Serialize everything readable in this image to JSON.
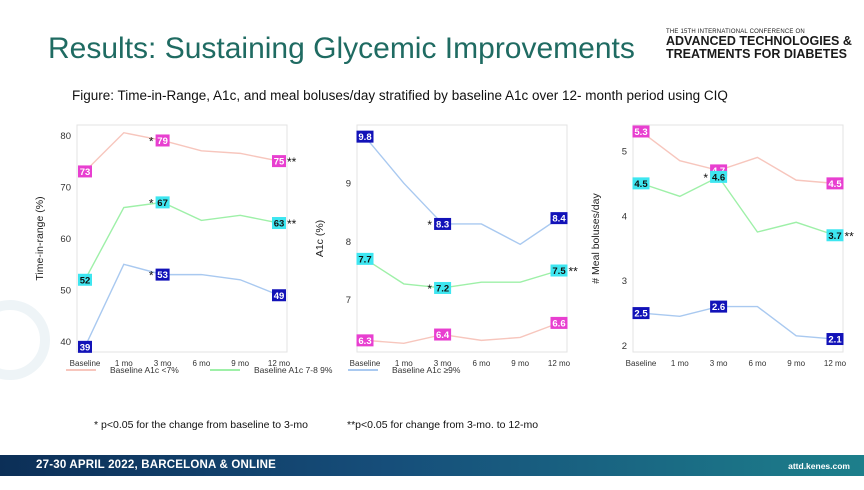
{
  "slide": {
    "title": "Results: Sustaining Glycemic Improvements",
    "conference_top": "THE 15TH INTERNATIONAL CONFERENCE ON",
    "conference_line1": "ADVANCED TECHNOLOGIES &",
    "conference_line2": "TREATMENTS FOR DIABETES",
    "subtitle": "Figure: Time-in-Range, A1c, and meal boluses/day stratified by baseline A1c over 12- month period using CIQ",
    "footnote1": "* p<0.05 for the change from baseline to 3-mo",
    "footnote2": "**p<0.05 for change from 3-mo. to 12-mo",
    "footer_left": "27-30 APRIL 2022, BARCELONA & ONLINE",
    "footer_right": "attd.kenes.com"
  },
  "legend": [
    {
      "label": "Baseline A1c <7%",
      "color": "#f7c6bd"
    },
    {
      "label": "Baseline A1c 7-8 9%",
      "color": "#9ef0a8"
    },
    {
      "label": "Baseline A1c ≥9%",
      "color": "#a9c9f0"
    }
  ],
  "chart_data": [
    {
      "type": "line",
      "ylabel": "Time-in-range (%)",
      "ylim": [
        38,
        82
      ],
      "yticks": [
        40,
        50,
        60,
        70,
        80
      ],
      "categories": [
        "Baseline",
        "1 mo",
        "3 mo",
        "6 mo",
        "9 mo",
        "12 mo"
      ],
      "series": [
        {
          "color": "#f7c6bd",
          "values": [
            73,
            80.5,
            79,
            77,
            76.5,
            75
          ]
        },
        {
          "color": "#9ef0a8",
          "values": [
            52,
            66,
            67,
            63.5,
            64.5,
            63
          ]
        },
        {
          "color": "#a9c9f0",
          "values": [
            39,
            55,
            53,
            53,
            52,
            49
          ]
        }
      ],
      "labels": [
        {
          "index": 0,
          "value": 73,
          "text": "73",
          "bg": "#e83fd0",
          "fg": "#ffffff"
        },
        {
          "index": 2,
          "value": 79,
          "text": "79",
          "bg": "#e83fd0",
          "fg": "#ffffff",
          "mark": "*"
        },
        {
          "index": 5,
          "value": 75,
          "text": "75",
          "bg": "#e83fd0",
          "fg": "#ffffff",
          "mark": "**"
        },
        {
          "index": 0,
          "value": 52,
          "text": "52",
          "bg": "#3ee6f0",
          "fg": "#111111"
        },
        {
          "index": 2,
          "value": 67,
          "text": "67",
          "bg": "#3ee6f0",
          "fg": "#111111",
          "mark": "*"
        },
        {
          "index": 5,
          "value": 63,
          "text": "63",
          "bg": "#3ee6f0",
          "fg": "#111111",
          "mark": "**"
        },
        {
          "index": 0,
          "value": 39,
          "text": "39",
          "bg": "#1212b8",
          "fg": "#ffffff"
        },
        {
          "index": 2,
          "value": 53,
          "text": "53",
          "bg": "#1212b8",
          "fg": "#ffffff",
          "mark": "*"
        },
        {
          "index": 5,
          "value": 49,
          "text": "49",
          "bg": "#1212b8",
          "fg": "#ffffff"
        }
      ]
    },
    {
      "type": "line",
      "ylabel": "A1c (%)",
      "ylim": [
        6.1,
        10.0
      ],
      "yticks": [
        7,
        8,
        9
      ],
      "categories": [
        "Baseline",
        "1 mo",
        "3 mo",
        "6 mo",
        "9 mo",
        "12 mo"
      ],
      "series": [
        {
          "color": "#f7c6bd",
          "values": [
            6.3,
            6.25,
            6.4,
            6.3,
            6.35,
            6.6
          ]
        },
        {
          "color": "#9ef0a8",
          "values": [
            7.7,
            7.27,
            7.2,
            7.3,
            7.3,
            7.5
          ]
        },
        {
          "color": "#a9c9f0",
          "values": [
            9.8,
            9.0,
            8.3,
            8.3,
            7.95,
            8.4
          ]
        }
      ],
      "labels": [
        {
          "index": 0,
          "value": 9.8,
          "text": "9.8",
          "bg": "#1212b8",
          "fg": "#ffffff"
        },
        {
          "index": 2,
          "value": 8.3,
          "text": "8.3",
          "bg": "#1212b8",
          "fg": "#ffffff",
          "mark": "*"
        },
        {
          "index": 5,
          "value": 8.4,
          "text": "8.4",
          "bg": "#1212b8",
          "fg": "#ffffff"
        },
        {
          "index": 0,
          "value": 7.7,
          "text": "7.7",
          "bg": "#3ee6f0",
          "fg": "#111111"
        },
        {
          "index": 2,
          "value": 7.2,
          "text": "7.2",
          "bg": "#3ee6f0",
          "fg": "#111111",
          "mark": "*"
        },
        {
          "index": 5,
          "value": 7.5,
          "text": "7.5",
          "bg": "#3ee6f0",
          "fg": "#111111",
          "mark": "**"
        },
        {
          "index": 0,
          "value": 6.3,
          "text": "6.3",
          "bg": "#e83fd0",
          "fg": "#ffffff"
        },
        {
          "index": 2,
          "value": 6.4,
          "text": "6.4",
          "bg": "#e83fd0",
          "fg": "#ffffff"
        },
        {
          "index": 5,
          "value": 6.6,
          "text": "6.6",
          "bg": "#e83fd0",
          "fg": "#ffffff"
        }
      ]
    },
    {
      "type": "line",
      "ylabel": "# Meal boluses/day",
      "ylim": [
        1.9,
        5.4
      ],
      "yticks": [
        2,
        3,
        4,
        5
      ],
      "categories": [
        "Baseline",
        "1 mo",
        "3 mo",
        "6 mo",
        "9 mo",
        "12 mo"
      ],
      "series": [
        {
          "color": "#f7c6bd",
          "values": [
            5.3,
            4.85,
            4.7,
            4.9,
            4.55,
            4.5
          ]
        },
        {
          "color": "#9ef0a8",
          "values": [
            4.5,
            4.3,
            4.6,
            3.75,
            3.9,
            3.7
          ]
        },
        {
          "color": "#a9c9f0",
          "values": [
            2.5,
            2.45,
            2.6,
            2.6,
            2.15,
            2.1
          ]
        }
      ],
      "labels": [
        {
          "index": 0,
          "value": 5.3,
          "text": "5.3",
          "bg": "#e83fd0",
          "fg": "#ffffff"
        },
        {
          "index": 2,
          "value": 4.7,
          "text": "4.7",
          "bg": "#e83fd0",
          "fg": "#ffffff"
        },
        {
          "index": 5,
          "value": 4.5,
          "text": "4.5",
          "bg": "#e83fd0",
          "fg": "#ffffff"
        },
        {
          "index": 0,
          "value": 4.5,
          "text": "4.5",
          "bg": "#3ee6f0",
          "fg": "#111111"
        },
        {
          "index": 2,
          "value": 4.6,
          "text": "4.6",
          "bg": "#3ee6f0",
          "fg": "#111111",
          "mark": "*"
        },
        {
          "index": 5,
          "value": 3.7,
          "text": "3.7",
          "bg": "#3ee6f0",
          "fg": "#111111",
          "mark": "**"
        },
        {
          "index": 0,
          "value": 2.5,
          "text": "2.5",
          "bg": "#1212b8",
          "fg": "#ffffff"
        },
        {
          "index": 2,
          "value": 2.6,
          "text": "2.6",
          "bg": "#1212b8",
          "fg": "#ffffff"
        },
        {
          "index": 5,
          "value": 2.1,
          "text": "2.1",
          "bg": "#1212b8",
          "fg": "#ffffff"
        }
      ]
    }
  ]
}
